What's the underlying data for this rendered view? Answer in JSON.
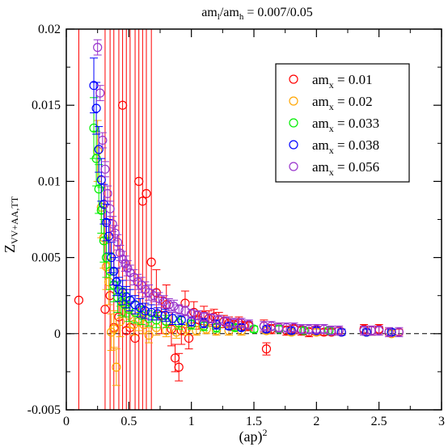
{
  "chart_data": {
    "type": "scatter",
    "title": "am_l/am_h = 0.007/0.05",
    "xlabel": "(ap)^2",
    "ylabel": "Z_VV+AA,TT",
    "xlim": [
      0,
      3
    ],
    "ylim": [
      -0.005,
      0.02
    ],
    "xticks": [
      0,
      0.5,
      1,
      1.5,
      2,
      2.5,
      3
    ],
    "xtick_labels": [
      "0",
      "0.5",
      "1",
      "1.5",
      "2",
      "2.5",
      "3"
    ],
    "yticks": [
      -0.005,
      0,
      0.005,
      0.01,
      0.015,
      0.02
    ],
    "ytick_labels": [
      "-0.005",
      "0",
      "0.005",
      "0.01",
      "0.015",
      "0.02"
    ],
    "reference_line": {
      "y": 0,
      "style": "dashed"
    },
    "legend_position": "top-right",
    "series": [
      {
        "name": "am_x = 0.01",
        "color": "#ff0000",
        "marker": "open-circle",
        "points": [
          [
            0.1,
            0.0022,
            0.05
          ],
          [
            0.31,
            0.0016,
            0.05
          ],
          [
            0.35,
            0.0025,
            0.05
          ],
          [
            0.38,
            0.0004,
            0.05
          ],
          [
            0.42,
            0.0011,
            0.05
          ],
          [
            0.45,
            0.015,
            0.05
          ],
          [
            0.48,
            0.0002,
            0.05
          ],
          [
            0.51,
            0.0004,
            0.05
          ],
          [
            0.55,
            -0.0003,
            0.05
          ],
          [
            0.58,
            0.01,
            0.05
          ],
          [
            0.61,
            0.0087,
            0.05
          ],
          [
            0.64,
            0.0092,
            0.05
          ],
          [
            0.68,
            0.0047,
            0.05
          ],
          [
            0.72,
            0.0027,
            0.0015
          ],
          [
            0.76,
            0.0012,
            0.0012
          ],
          [
            0.8,
            0.0019,
            0.0013
          ],
          [
            0.84,
            0.0003,
            0.0011
          ],
          [
            0.87,
            -0.0016,
            0.0009
          ],
          [
            0.9,
            -0.0022,
            0.0009
          ],
          [
            0.92,
            0.0002,
            0.0009
          ],
          [
            0.95,
            0.002,
            0.0008
          ],
          [
            0.98,
            -0.0003,
            0.0007
          ],
          [
            1.02,
            0.0014,
            0.0007
          ],
          [
            1.06,
            0.0009,
            0.0006
          ],
          [
            1.1,
            0.0012,
            0.0006
          ],
          [
            1.14,
            0.001,
            0.0005
          ],
          [
            1.18,
            0.0011,
            0.0005
          ],
          [
            1.22,
            0.0009,
            0.0005
          ],
          [
            1.26,
            0.0008,
            0.0004
          ],
          [
            1.3,
            0.0007,
            0.0004
          ],
          [
            1.34,
            0.0006,
            0.0004
          ],
          [
            1.38,
            0.0007,
            0.0004
          ],
          [
            1.42,
            0.0005,
            0.0003
          ],
          [
            1.46,
            0.0005,
            0.0003
          ],
          [
            1.58,
            0.0005,
            0.0004
          ],
          [
            1.6,
            -0.001,
            0.0004
          ],
          [
            1.64,
            0.0003,
            0.0003
          ],
          [
            1.7,
            0.0004,
            0.0003
          ],
          [
            1.76,
            0.0002,
            0.0003
          ],
          [
            1.82,
            0.0003,
            0.0003
          ],
          [
            1.88,
            0.0002,
            0.0003
          ],
          [
            1.94,
            0.0001,
            0.0003
          ],
          [
            2.0,
            0.0002,
            0.0003
          ],
          [
            2.06,
            0.0001,
            0.0002
          ],
          [
            2.12,
            0.0001,
            0.0002
          ],
          [
            2.18,
            0.0002,
            0.0002
          ],
          [
            2.38,
            0.0003,
            0.0003
          ],
          [
            2.44,
            0.0002,
            0.0003
          ],
          [
            2.5,
            0.0003,
            0.0003
          ],
          [
            2.58,
            0.0001,
            0.0002
          ],
          [
            2.66,
            0.0001,
            0.0002
          ]
        ]
      },
      {
        "name": "am_x = 0.02",
        "color": "#ffa500",
        "marker": "open-circle",
        "points": [
          [
            0.25,
            0.012,
            0.002
          ],
          [
            0.28,
            0.0083,
            0.002
          ],
          [
            0.3,
            0.0063,
            0.002
          ],
          [
            0.32,
            0.0044,
            0.0015
          ],
          [
            0.34,
            0.0034,
            0.0015
          ],
          [
            0.36,
            0.0001,
            0.0012
          ],
          [
            0.38,
            0.0003,
            0.0012
          ],
          [
            0.4,
            -0.0022,
            0.0012
          ],
          [
            0.43,
            0.0008,
            0.001
          ],
          [
            0.46,
            0.002,
            0.0009
          ],
          [
            0.5,
            0.0012,
            0.0008
          ],
          [
            0.54,
            0.0006,
            0.0007
          ],
          [
            0.58,
            0.0008,
            0.0006
          ],
          [
            0.62,
            0.0006,
            0.0006
          ],
          [
            0.66,
            -0.0001,
            0.0005
          ],
          [
            0.72,
            0.0004,
            0.0005
          ],
          [
            0.8,
            0.0002,
            0.0004
          ],
          [
            0.88,
            0.0001,
            0.0004
          ],
          [
            0.96,
            0.0003,
            0.0004
          ],
          [
            1.04,
            0.0002,
            0.0003
          ],
          [
            1.12,
            0.0003,
            0.0003
          ],
          [
            1.2,
            0.0002,
            0.0003
          ],
          [
            1.3,
            0.0002,
            0.0003
          ],
          [
            1.4,
            0.0002,
            0.0003
          ],
          [
            1.6,
            0.0002,
            0.0002
          ],
          [
            1.8,
            0.0001,
            0.0002
          ],
          [
            2.0,
            0.0001,
            0.0002
          ],
          [
            2.2,
            0.0001,
            0.0002
          ],
          [
            2.4,
            0.0001,
            0.0002
          ],
          [
            2.6,
            0.0,
            0.0002
          ]
        ]
      },
      {
        "name": "am_x = 0.033",
        "color": "#00ee00",
        "marker": "open-circle",
        "points": [
          [
            0.22,
            0.0135,
            0.002
          ],
          [
            0.24,
            0.0115,
            0.0018
          ],
          [
            0.26,
            0.0095,
            0.0016
          ],
          [
            0.28,
            0.0081,
            0.0015
          ],
          [
            0.3,
            0.0061,
            0.0014
          ],
          [
            0.32,
            0.005,
            0.0013
          ],
          [
            0.35,
            0.0041,
            0.0012
          ],
          [
            0.38,
            0.0032,
            0.0011
          ],
          [
            0.41,
            0.0024,
            0.001
          ],
          [
            0.44,
            0.0021,
            0.0009
          ],
          [
            0.47,
            0.0019,
            0.0008
          ],
          [
            0.5,
            0.0016,
            0.0008
          ],
          [
            0.55,
            0.0014,
            0.0007
          ],
          [
            0.6,
            0.0012,
            0.0006
          ],
          [
            0.66,
            0.001,
            0.0005
          ],
          [
            0.72,
            0.0009,
            0.0005
          ],
          [
            0.8,
            0.0008,
            0.0004
          ],
          [
            0.9,
            0.0007,
            0.0004
          ],
          [
            1.0,
            0.0006,
            0.0003
          ],
          [
            1.1,
            0.0005,
            0.0003
          ],
          [
            1.2,
            0.0004,
            0.0003
          ],
          [
            1.35,
            0.0004,
            0.0002
          ],
          [
            1.5,
            0.0003,
            0.0002
          ],
          [
            1.7,
            0.0003,
            0.0002
          ],
          [
            1.9,
            0.0002,
            0.0002
          ],
          [
            2.1,
            0.0002,
            0.0002
          ],
          [
            2.4,
            0.0001,
            0.0002
          ],
          [
            2.6,
            0.0001,
            0.0002
          ]
        ]
      },
      {
        "name": "am_x = 0.038",
        "color": "#0000ff",
        "marker": "open-circle",
        "points": [
          [
            0.22,
            0.0163,
            0.0018
          ],
          [
            0.24,
            0.0148,
            0.0017
          ],
          [
            0.26,
            0.0121,
            0.0015
          ],
          [
            0.28,
            0.0101,
            0.0014
          ],
          [
            0.3,
            0.0085,
            0.0013
          ],
          [
            0.32,
            0.0073,
            0.0012
          ],
          [
            0.34,
            0.0064,
            0.0011
          ],
          [
            0.36,
            0.005,
            0.001
          ],
          [
            0.38,
            0.0041,
            0.0009
          ],
          [
            0.4,
            0.0034,
            0.0009
          ],
          [
            0.42,
            0.0029,
            0.0008
          ],
          [
            0.45,
            0.0027,
            0.0008
          ],
          [
            0.48,
            0.0024,
            0.0007
          ],
          [
            0.51,
            0.0022,
            0.0007
          ],
          [
            0.55,
            0.0019,
            0.0006
          ],
          [
            0.59,
            0.0017,
            0.0006
          ],
          [
            0.63,
            0.0015,
            0.0005
          ],
          [
            0.68,
            0.0014,
            0.0005
          ],
          [
            0.73,
            0.0013,
            0.0004
          ],
          [
            0.79,
            0.0012,
            0.0004
          ],
          [
            0.85,
            0.001,
            0.0004
          ],
          [
            0.92,
            0.0009,
            0.0003
          ],
          [
            1.0,
            0.0008,
            0.0003
          ],
          [
            1.1,
            0.0007,
            0.0003
          ],
          [
            1.2,
            0.0006,
            0.0003
          ],
          [
            1.3,
            0.0005,
            0.0002
          ],
          [
            1.4,
            0.0004,
            0.0002
          ],
          [
            1.6,
            0.0003,
            0.0002
          ],
          [
            1.8,
            0.0002,
            0.0002
          ],
          [
            2.0,
            0.0002,
            0.0002
          ],
          [
            2.2,
            0.0001,
            0.0002
          ],
          [
            2.4,
            0.0001,
            0.0002
          ],
          [
            2.6,
            0.0001,
            0.0002
          ]
        ]
      },
      {
        "name": "am_x = 0.056",
        "color": "#9933cc",
        "marker": "open-circle",
        "points": [
          [
            0.25,
            0.0188,
            0.0005
          ],
          [
            0.27,
            0.0158,
            0.0005
          ],
          [
            0.29,
            0.0127,
            0.0005
          ],
          [
            0.31,
            0.0108,
            0.0005
          ],
          [
            0.33,
            0.0092,
            0.0005
          ],
          [
            0.35,
            0.0082,
            0.0005
          ],
          [
            0.37,
            0.0072,
            0.0005
          ],
          [
            0.39,
            0.0066,
            0.0005
          ],
          [
            0.41,
            0.006,
            0.0005
          ],
          [
            0.43,
            0.0053,
            0.0005
          ],
          [
            0.45,
            0.0049,
            0.0005
          ],
          [
            0.47,
            0.0046,
            0.0005
          ],
          [
            0.49,
            0.0043,
            0.0005
          ],
          [
            0.51,
            0.004,
            0.0005
          ],
          [
            0.54,
            0.0037,
            0.0005
          ],
          [
            0.57,
            0.0034,
            0.0005
          ],
          [
            0.6,
            0.0032,
            0.0005
          ],
          [
            0.63,
            0.0029,
            0.0005
          ],
          [
            0.66,
            0.0027,
            0.0005
          ],
          [
            0.7,
            0.0025,
            0.0004
          ],
          [
            0.74,
            0.0023,
            0.0004
          ],
          [
            0.78,
            0.0021,
            0.0004
          ],
          [
            0.82,
            0.0019,
            0.0004
          ],
          [
            0.86,
            0.0018,
            0.0004
          ],
          [
            0.9,
            0.0016,
            0.0003
          ],
          [
            0.95,
            0.0015,
            0.0003
          ],
          [
            1.0,
            0.0013,
            0.0003
          ],
          [
            1.05,
            0.0012,
            0.0003
          ],
          [
            1.1,
            0.0011,
            0.0003
          ],
          [
            1.16,
            0.001,
            0.0003
          ],
          [
            1.22,
            0.0009,
            0.0003
          ],
          [
            1.28,
            0.0008,
            0.0003
          ],
          [
            1.34,
            0.0007,
            0.0003
          ],
          [
            1.4,
            0.0007,
            0.0003
          ],
          [
            1.46,
            0.0006,
            0.0003
          ],
          [
            1.58,
            0.0005,
            0.0003
          ],
          [
            1.64,
            0.0005,
            0.0003
          ],
          [
            1.7,
            0.0004,
            0.0003
          ],
          [
            1.76,
            0.0004,
            0.0003
          ],
          [
            1.82,
            0.0004,
            0.0003
          ],
          [
            1.88,
            0.0003,
            0.0003
          ],
          [
            1.94,
            0.0003,
            0.0003
          ],
          [
            2.0,
            0.0003,
            0.0003
          ],
          [
            2.06,
            0.0003,
            0.0003
          ],
          [
            2.12,
            0.0002,
            0.0003
          ],
          [
            2.18,
            0.0002,
            0.0003
          ],
          [
            2.38,
            0.0002,
            0.0003
          ],
          [
            2.44,
            0.0002,
            0.0003
          ],
          [
            2.5,
            0.0002,
            0.0003
          ],
          [
            2.58,
            0.0001,
            0.0003
          ],
          [
            2.66,
            0.0001,
            0.0003
          ]
        ]
      }
    ]
  }
}
